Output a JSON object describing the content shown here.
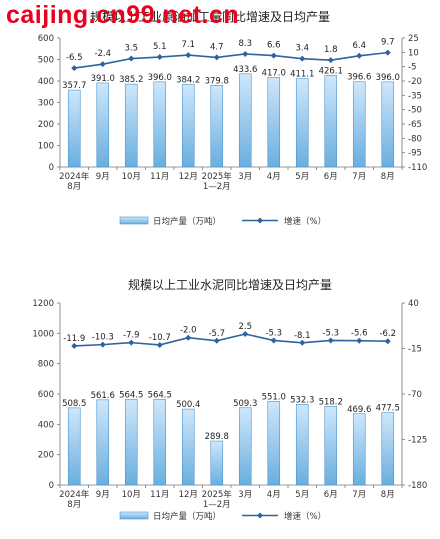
{
  "watermark": "caijing.cn99.net.cn",
  "chart_data": [
    {
      "type": "bar",
      "title": "规模以上工业原油加工量同比增速及日均产量",
      "categories": [
        "2024年\n8月",
        "9月",
        "10月",
        "11月",
        "12月",
        "2025年\n1—2月",
        "3月",
        "4月",
        "5月",
        "6月",
        "7月",
        "8月"
      ],
      "series": [
        {
          "name": "日均产量（万吨）",
          "type": "bar",
          "axis": "left",
          "values": [
            357.7,
            391.0,
            385.2,
            396.0,
            384.2,
            379.8,
            433.6,
            417.0,
            411.1,
            426.1,
            396.6,
            396.0
          ],
          "labels": [
            "357.7",
            "391.0",
            "385.2",
            "396.0",
            "384.2",
            "379.8",
            "433.6",
            "417.0",
            "411.1",
            "426.1",
            "396.6",
            "396.0"
          ]
        },
        {
          "name": "增速（%）",
          "type": "line",
          "axis": "right",
          "values": [
            -6.5,
            -2.4,
            3.5,
            5.1,
            7.1,
            4.7,
            8.3,
            6.6,
            3.4,
            1.8,
            6.4,
            9.7
          ],
          "labels": [
            "-6.5",
            "-2.4",
            "3.5",
            "5.1",
            "7.1",
            "4.7",
            "8.3",
            "6.6",
            "3.4",
            "1.8",
            "6.4",
            "9.7"
          ]
        }
      ],
      "y_left": {
        "min": 0,
        "max": 600,
        "ticks": [
          "0",
          "100",
          "200",
          "300",
          "400",
          "500",
          "600"
        ]
      },
      "y_right": {
        "min": -110,
        "max": 25,
        "ticks": [
          "25",
          "10",
          "-5",
          "-20",
          "-35",
          "-50",
          "-65",
          "-80",
          "-95",
          "-110"
        ]
      },
      "legend": {
        "position": "bottom",
        "bar_label": "日均产量（万吨）",
        "line_label": "增速（%）"
      },
      "colors": {
        "bar_top": "#cfe7fb",
        "bar_bottom": "#6aaedf",
        "bar_stroke": "#4b95cc",
        "line": "#2f63a0"
      },
      "grid": false
    },
    {
      "type": "bar",
      "title": "规模以上工业水泥同比增速及日均产量",
      "categories": [
        "2024年\n8月",
        "9月",
        "10月",
        "11月",
        "12月",
        "2025年\n1—2月",
        "3月",
        "4月",
        "5月",
        "6月",
        "7月",
        "8月"
      ],
      "series": [
        {
          "name": "日均产量（万吨）",
          "type": "bar",
          "axis": "left",
          "values": [
            508.5,
            561.6,
            564.5,
            564.5,
            500.4,
            289.8,
            509.3,
            551.0,
            532.3,
            518.2,
            469.6,
            477.5
          ],
          "labels": [
            "508.5",
            "561.6",
            "564.5",
            "564.5",
            "500.4",
            "289.8",
            "509.3",
            "551.0",
            "532.3",
            "518.2",
            "469.6",
            "477.5"
          ]
        },
        {
          "name": "增速（%）",
          "type": "line",
          "axis": "right",
          "values": [
            -11.9,
            -10.3,
            -7.9,
            -10.7,
            -2.0,
            -5.7,
            2.5,
            -5.3,
            -8.1,
            -5.3,
            -5.6,
            -6.2
          ],
          "labels": [
            "-11.9",
            "-10.3",
            "-7.9",
            "-10.7",
            "-2.0",
            "-5.7",
            "2.5",
            "-5.3",
            "-8.1",
            "-5.3",
            "-5.6",
            "-6.2"
          ]
        }
      ],
      "y_left": {
        "min": 0,
        "max": 1200,
        "ticks": [
          "0",
          "200",
          "400",
          "600",
          "800",
          "1000",
          "1200"
        ]
      },
      "y_right": {
        "min": -180,
        "max": 40,
        "ticks": [
          "40",
          "-15",
          "-70",
          "-125",
          "-180"
        ]
      },
      "legend": {
        "position": "bottom",
        "bar_label": "日均产量（万吨）",
        "line_label": "增速（%）"
      },
      "colors": {
        "bar_top": "#cfe7fb",
        "bar_bottom": "#6aaedf",
        "bar_stroke": "#4b95cc",
        "line": "#2f63a0"
      },
      "grid": false
    }
  ]
}
